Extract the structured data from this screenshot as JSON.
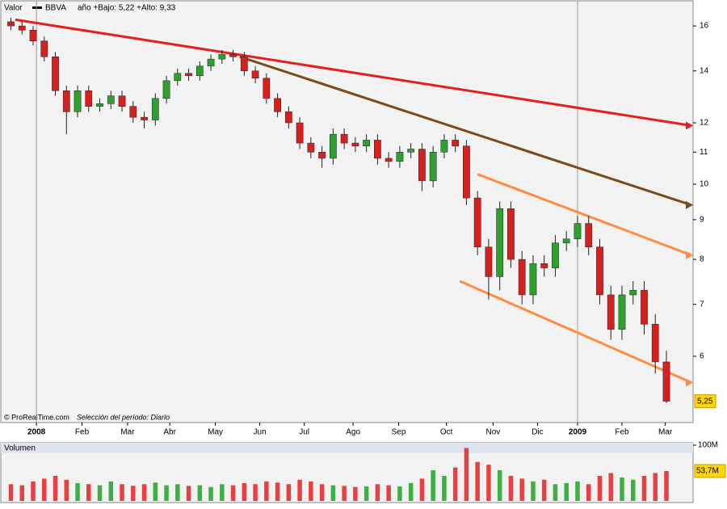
{
  "header": {
    "valor": "Valor",
    "symbol": "BBVA",
    "range": "año +Bajo: 5,22 +Alto: 9,33"
  },
  "footer": {
    "source": "© ProRealTime.com",
    "period": "Selección del período: Diario"
  },
  "chart_data": [
    {
      "type": "candlestick",
      "log_scale": true,
      "up_color": "#2ea02e",
      "down_color": "#d62020",
      "x": [
        2,
        7,
        12,
        17,
        22,
        27,
        32,
        37,
        42,
        47,
        52,
        57,
        62,
        67,
        72,
        77,
        82,
        87,
        92,
        97,
        102,
        107,
        112,
        117,
        122,
        127,
        132,
        137,
        142,
        147,
        152,
        157,
        162,
        167,
        172,
        177,
        182,
        187,
        192,
        197,
        202,
        207,
        212,
        217,
        222,
        227,
        232,
        237,
        242,
        247,
        252,
        257,
        262,
        267,
        272,
        277,
        282,
        287,
        292,
        297
      ],
      "open": [
        16.2,
        16.0,
        15.8,
        15.3,
        14.6,
        13.2,
        12.4,
        13.2,
        12.6,
        12.7,
        13.0,
        12.6,
        12.2,
        12.1,
        12.9,
        13.6,
        13.9,
        13.8,
        14.2,
        14.5,
        14.7,
        14.6,
        14.0,
        13.7,
        12.9,
        12.4,
        12.0,
        11.3,
        11.0,
        10.8,
        11.6,
        11.3,
        11.2,
        11.4,
        10.8,
        10.7,
        11.0,
        11.1,
        10.1,
        11.0,
        11.4,
        11.2,
        9.6,
        8.3,
        7.6,
        9.3,
        8.0,
        7.2,
        7.9,
        7.8,
        8.4,
        8.5,
        8.9,
        8.3,
        7.2,
        6.5,
        7.2,
        7.3,
        6.6,
        5.9
      ],
      "high": [
        16.4,
        16.2,
        16.0,
        15.5,
        14.8,
        13.4,
        13.4,
        13.4,
        12.9,
        13.2,
        13.2,
        12.8,
        12.4,
        13.1,
        13.8,
        14.1,
        14.1,
        14.4,
        14.7,
        14.9,
        14.9,
        14.8,
        14.2,
        13.9,
        13.1,
        12.6,
        12.2,
        11.5,
        11.2,
        11.8,
        11.8,
        11.5,
        11.6,
        11.6,
        11.0,
        11.2,
        11.3,
        11.3,
        11.2,
        11.6,
        11.6,
        11.4,
        9.8,
        8.5,
        9.5,
        9.5,
        8.2,
        8.1,
        8.1,
        8.6,
        8.7,
        9.1,
        9.1,
        8.5,
        7.4,
        7.4,
        7.5,
        7.5,
        6.8,
        6.1
      ],
      "low": [
        15.8,
        15.6,
        15.1,
        14.4,
        13.0,
        11.6,
        12.2,
        12.4,
        12.4,
        12.5,
        12.4,
        12.0,
        11.8,
        11.9,
        12.7,
        13.4,
        13.6,
        13.6,
        14.0,
        14.3,
        14.4,
        13.8,
        13.5,
        12.7,
        12.2,
        11.8,
        11.1,
        10.8,
        10.5,
        10.6,
        11.1,
        11.0,
        11.0,
        10.6,
        10.5,
        10.5,
        10.8,
        9.8,
        9.9,
        10.8,
        11.0,
        9.4,
        8.1,
        7.1,
        7.3,
        7.8,
        7.0,
        7.0,
        7.6,
        7.6,
        8.2,
        8.3,
        8.1,
        7.0,
        6.3,
        6.3,
        7.0,
        6.4,
        5.7,
        5.22
      ],
      "close": [
        16.0,
        15.8,
        15.3,
        14.6,
        13.2,
        12.4,
        13.2,
        12.6,
        12.7,
        13.0,
        12.6,
        12.2,
        12.1,
        12.9,
        13.6,
        13.9,
        13.8,
        14.2,
        14.5,
        14.7,
        14.6,
        14.0,
        13.7,
        12.9,
        12.4,
        12.0,
        11.3,
        11.0,
        10.8,
        11.6,
        11.3,
        11.2,
        11.4,
        10.8,
        10.7,
        11.0,
        11.1,
        10.1,
        11.0,
        11.4,
        11.2,
        9.6,
        8.3,
        7.6,
        9.3,
        8.0,
        7.2,
        7.9,
        7.8,
        8.4,
        8.5,
        8.9,
        8.3,
        7.2,
        6.5,
        7.2,
        7.3,
        6.6,
        5.9,
        5.25
      ],
      "last_label": "5,25",
      "xlim": [
        0,
        309
      ],
      "xticks": [
        {
          "value": 13.5,
          "label": "2008"
        },
        {
          "value": 34,
          "label": "Feb"
        },
        {
          "value": 54.5,
          "label": "Mar"
        },
        {
          "value": 73.5,
          "label": "Abr"
        },
        {
          "value": 94,
          "label": "May"
        },
        {
          "value": 114,
          "label": "Jun"
        },
        {
          "value": 134,
          "label": "Jul"
        },
        {
          "value": 156,
          "label": "Ago"
        },
        {
          "value": 176.5,
          "label": "Sep"
        },
        {
          "value": 198,
          "label": "Oct"
        },
        {
          "value": 219,
          "label": "Nov"
        },
        {
          "value": 239,
          "label": "Dic"
        },
        {
          "value": 257,
          "label": "2009"
        },
        {
          "value": 277,
          "label": "Feb"
        },
        {
          "value": 296.5,
          "label": "Mar"
        }
      ],
      "ylim": [
        4.94,
        16.55
      ],
      "yticks": [
        6,
        7,
        8,
        9,
        10,
        11,
        12,
        14,
        16
      ],
      "trend_lines": [
        {
          "color": "#e81e1e",
          "x": [
            4,
            309
          ],
          "y": [
            16.3,
            11.9
          ]
        },
        {
          "color": "#7a4a1a",
          "x": [
            105,
            309
          ],
          "y": [
            14.6,
            9.4
          ]
        },
        {
          "color": "#ff8c42",
          "x": [
            212,
            309
          ],
          "y": [
            10.3,
            8.1
          ]
        },
        {
          "color": "#ff8c42",
          "x": [
            204,
            309
          ],
          "y": [
            7.5,
            5.55
          ]
        }
      ]
    },
    {
      "type": "volume",
      "title": "Volumen",
      "color": "#e84040",
      "up_color": "#3cb043",
      "values": [
        30,
        28,
        35,
        40,
        45,
        38,
        32,
        30,
        28,
        35,
        30,
        27,
        30,
        33,
        28,
        30,
        27,
        28,
        25,
        30,
        28,
        32,
        30,
        35,
        33,
        30,
        38,
        35,
        30,
        28,
        27,
        25,
        26,
        30,
        28,
        26,
        32,
        40,
        55,
        45,
        60,
        95,
        70,
        65,
        55,
        45,
        40,
        35,
        38,
        30,
        32,
        35,
        30,
        45,
        50,
        42,
        38,
        45,
        50,
        53.7
      ],
      "last_label": "53,7M",
      "ylim": [
        0,
        100
      ],
      "yticks": [
        {
          "value": 100,
          "label": "100M"
        }
      ]
    }
  ]
}
